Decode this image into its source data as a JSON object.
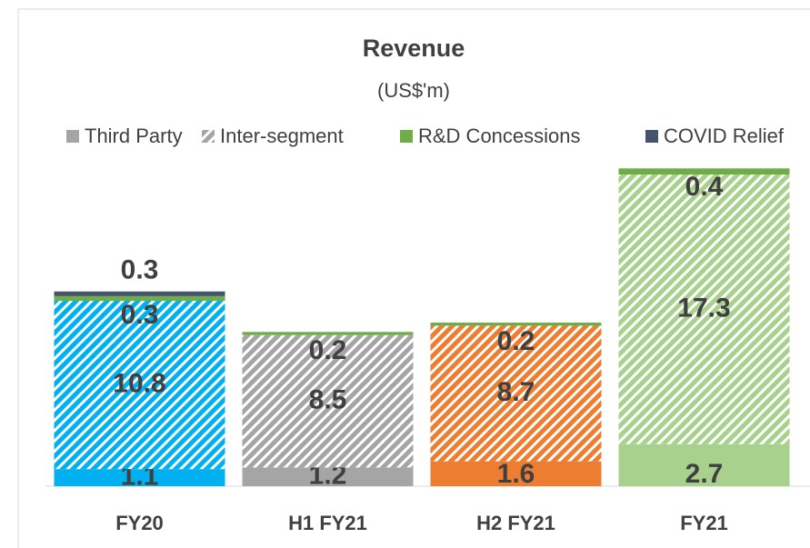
{
  "chart_data": {
    "type": "stacked_bar",
    "title": "Revenue",
    "subtitle": "(US$'m)",
    "categories": [
      "FY20",
      "H1 FY21",
      "H2 FY21",
      "FY21"
    ],
    "bar_colors": [
      "#00b0f0",
      "#a5a5a5",
      "#ed7d31",
      "#a9d18e"
    ],
    "series": [
      {
        "name": "Third Party",
        "color": "#a5a5a5",
        "values": [
          1.1,
          1.2,
          1.6,
          2.7
        ]
      },
      {
        "name": "Inter-segment",
        "color": "#a5a5a5",
        "pattern": "hatched",
        "values": [
          10.8,
          8.5,
          8.7,
          17.3
        ]
      },
      {
        "name": "R&D Concessions",
        "color": "#70ad47",
        "values": [
          0.3,
          0.2,
          0.2,
          0.4
        ]
      },
      {
        "name": "COVID Relief",
        "color": "#44546a",
        "values": [
          0.3,
          null,
          null,
          null
        ]
      }
    ],
    "ylim": [
      0,
      21
    ],
    "legend": "top"
  }
}
